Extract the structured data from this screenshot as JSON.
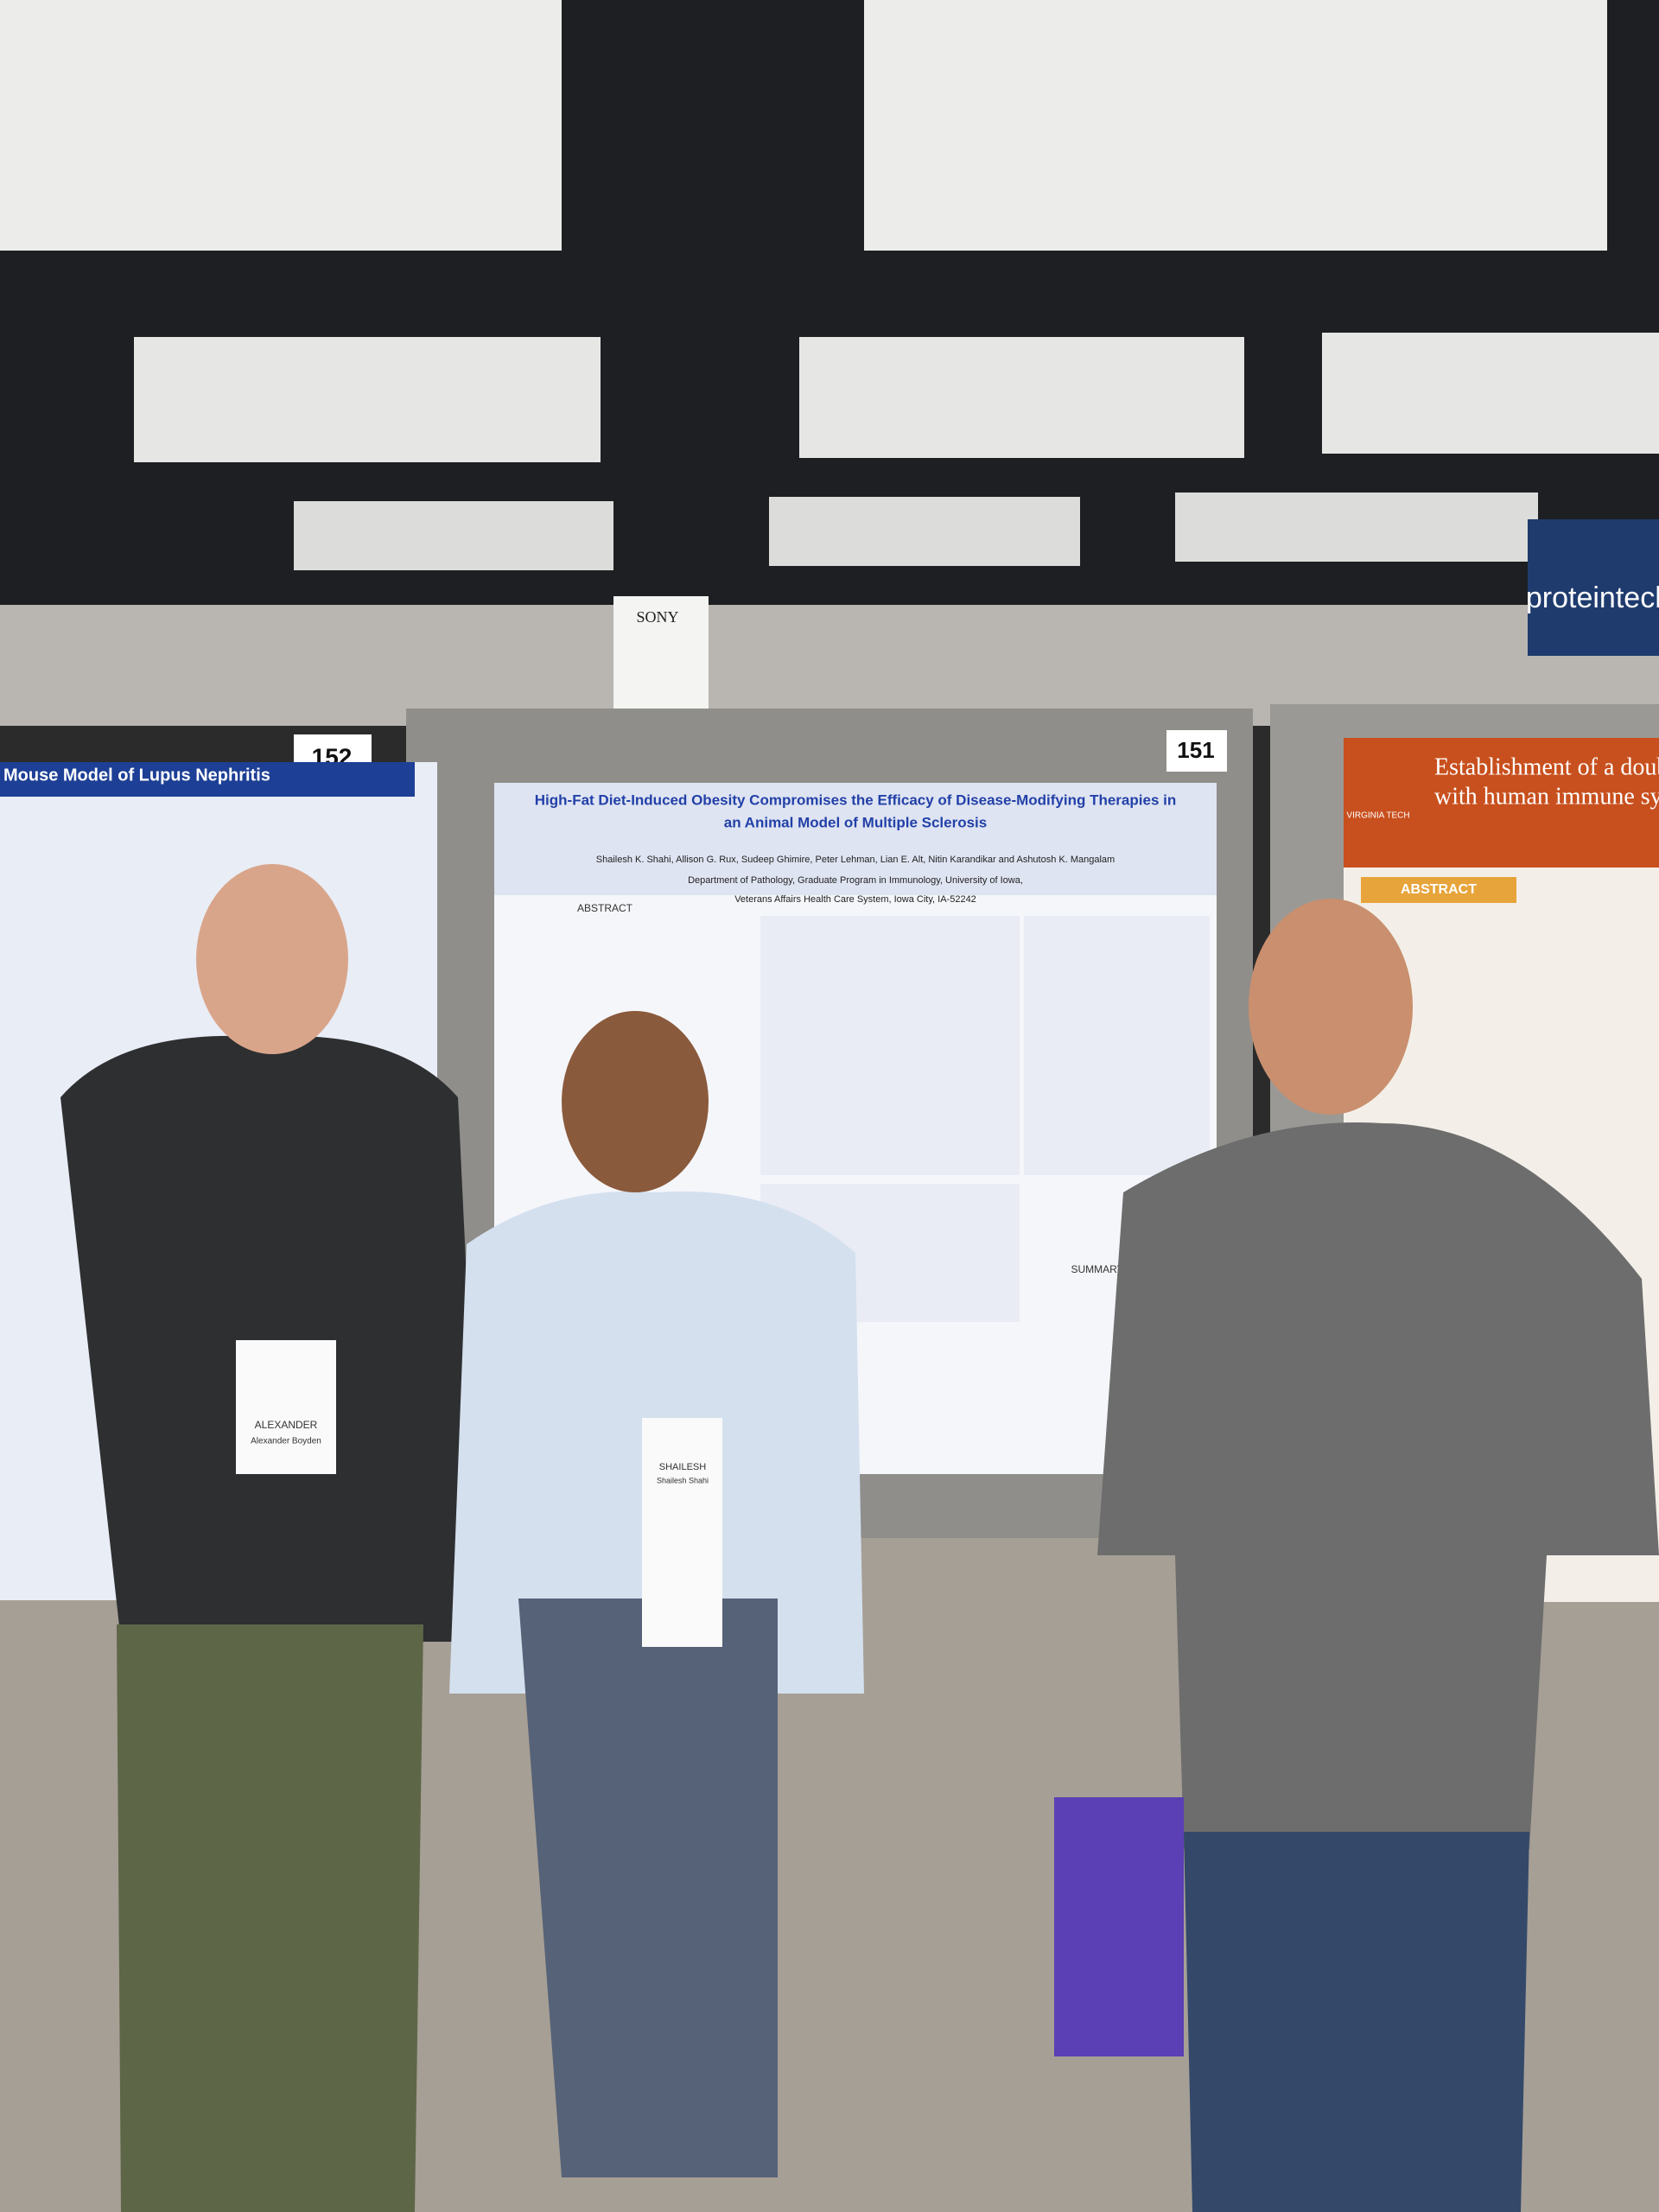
{
  "signs": {
    "booth_left": "152",
    "booth_right": "151",
    "sony": "SONY",
    "proteintech": "proteintech"
  },
  "center_poster": {
    "title": [
      "High-Fat Diet-Induced Obesity Compromises the Efficacy of Disease-Modifying Therapies in",
      "an Animal Model of Multiple Sclerosis"
    ],
    "authors": "Shailesh K. Shahi, Allison G. Rux, Sudeep Ghimire, Peter Lehman, Lian E. Alt, Nitin Karandikar and Ashutosh K. Mangalam",
    "affiliations": [
      "Department of Pathology, Graduate Program in Immunology, University of Iowa,",
      "Veterans Affairs Health Care System, Iowa City, IA-52242"
    ],
    "sections": [
      "ABSTRACT",
      "SUMMARY"
    ]
  },
  "left_poster": {
    "title": "Mouse Model of Lupus Nephritis"
  },
  "right_poster": {
    "title": [
      "Establishment of a doub",
      "with human immune sys"
    ],
    "logo": "VIRGINIA TECH",
    "section": "ABSTRACT"
  },
  "badges": [
    {
      "name": "ALEXANDER",
      "full_name": "Alexander Boyden"
    },
    {
      "name": "SHAILESH",
      "full_name": "Shailesh Shahi"
    }
  ]
}
